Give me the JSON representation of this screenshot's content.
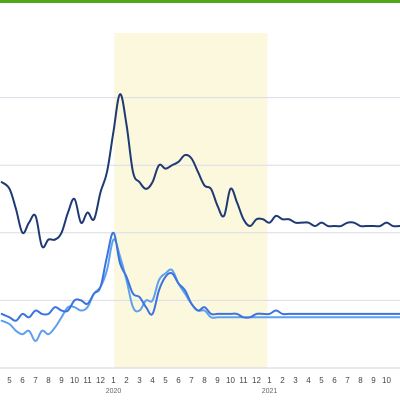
{
  "colors": {
    "top_border": "#4fa81b",
    "highlight_band": "#fbf8de",
    "gridline": "#d9dde6",
    "axis": "#cfd4dc",
    "series_dark": "#1f3a73",
    "series_mid": "#3b74df",
    "series_light": "#5f9ff0"
  },
  "chart_data": {
    "type": "line",
    "title": "",
    "xlabel": "",
    "ylabel": "",
    "x_month_labels": [
      "5",
      "6",
      "7",
      "8",
      "9",
      "10",
      "11",
      "12",
      "1",
      "2",
      "3",
      "4",
      "5",
      "6",
      "7",
      "8",
      "9",
      "10",
      "11",
      "12",
      "1",
      "2",
      "3",
      "4",
      "5",
      "6",
      "7",
      "8",
      "9",
      "10"
    ],
    "year_labels": [
      {
        "text": "2020",
        "at_month_index": 8
      },
      {
        "text": "2021",
        "at_month_index": 20
      }
    ],
    "highlight": {
      "from_month_index": 7.9,
      "to_month_index": 20.0
    },
    "grid": true,
    "yaxis_labels_visible": false,
    "ylim": [
      0,
      100
    ],
    "gridlines_y": [
      20,
      40,
      60,
      80
    ],
    "series": [
      {
        "color_key": "series_dark",
        "x": [
          -0.6,
          0,
          0.5,
          1,
          1.5,
          2,
          2.5,
          3,
          3.5,
          4,
          4.5,
          5,
          5.5,
          6,
          6.5,
          7,
          7.5,
          8,
          8.5,
          9,
          9.5,
          10,
          10.5,
          11,
          11.5,
          12,
          12.5,
          13,
          13.5,
          14,
          14.5,
          15,
          15.5,
          16,
          16.5,
          17,
          17.5,
          18,
          18.5,
          19,
          19.5,
          20,
          20.5,
          21,
          21.5,
          22,
          22.5,
          23,
          23.5,
          24,
          24.5,
          25,
          25.5,
          26,
          26.5,
          27,
          27.5,
          28,
          28.5,
          29,
          29.5,
          30
        ],
        "values": [
          55,
          53,
          47,
          40,
          43,
          45,
          36,
          38,
          38,
          40,
          46,
          50,
          43,
          46,
          44,
          52,
          58,
          70,
          81,
          72,
          58,
          55,
          53,
          55,
          60,
          59,
          60,
          61,
          63,
          62,
          58,
          54,
          53,
          48,
          45,
          53,
          49,
          44,
          42,
          44,
          44,
          43,
          45,
          44,
          44,
          43,
          43,
          43,
          42,
          43,
          42,
          42,
          42,
          43,
          43,
          42,
          42,
          42,
          42,
          43,
          42,
          42
        ]
      },
      {
        "color_key": "series_mid",
        "x": [
          -0.6,
          0,
          0.5,
          1,
          1.5,
          2,
          2.5,
          3,
          3.5,
          4,
          4.5,
          5,
          5.5,
          6,
          6.5,
          7,
          7.5,
          8,
          8.5,
          9,
          9.5,
          10,
          10.5,
          11,
          11.5,
          12,
          12.5,
          13,
          13.5,
          14,
          14.5,
          15,
          15.5,
          16,
          16.5,
          17,
          17.5,
          18,
          18.5,
          19,
          19.5,
          20,
          20.5,
          21,
          21.5,
          22,
          22.5,
          23,
          23.5,
          24,
          24.5,
          25,
          25.5,
          26,
          26.5,
          27,
          27.5,
          28,
          28.5,
          29,
          29.5,
          30
        ],
        "values": [
          16,
          15,
          14,
          16,
          15,
          17,
          16,
          16,
          18,
          17,
          17,
          20,
          20,
          19,
          22,
          24,
          33,
          40,
          31,
          27,
          22,
          21,
          18,
          16,
          23,
          27,
          28,
          25,
          23,
          19,
          17,
          18,
          16,
          16,
          16,
          16,
          16,
          15,
          15,
          16,
          16,
          16,
          17,
          16,
          16,
          16,
          16,
          16,
          16,
          16,
          16,
          16,
          16,
          16,
          16,
          16,
          16,
          16,
          16,
          16,
          16,
          16
        ]
      },
      {
        "color_key": "series_light",
        "x": [
          -0.6,
          0,
          0.5,
          1,
          1.5,
          2,
          2.5,
          3,
          3.5,
          4,
          4.5,
          5,
          5.5,
          6,
          6.5,
          7,
          7.5,
          8,
          8.5,
          9,
          9.5,
          10,
          10.5,
          11,
          11.5,
          12,
          12.5,
          13,
          13.5,
          14,
          14.5,
          15,
          15.5,
          16,
          16.5,
          17,
          17.5,
          18,
          18.5,
          19,
          19.5,
          20,
          20.5,
          21,
          21.5,
          22,
          22.5,
          23,
          23.5,
          24,
          24.5,
          25,
          25.5,
          26,
          26.5,
          27,
          27.5,
          28,
          28.5,
          29,
          29.5,
          30
        ],
        "values": [
          14,
          13,
          11,
          10,
          11,
          8,
          11,
          10,
          12,
          15,
          18,
          18,
          17,
          18,
          22,
          24,
          29,
          38,
          33,
          26,
          18,
          17,
          20,
          20,
          26,
          28,
          29,
          25,
          22,
          19,
          17,
          17,
          15,
          15,
          15,
          15,
          15,
          15,
          15,
          15,
          15,
          15,
          15,
          15,
          15,
          15,
          15,
          15,
          15,
          15,
          15,
          15,
          15,
          15,
          15,
          15,
          15,
          15,
          15,
          15,
          15,
          15
        ]
      }
    ]
  }
}
